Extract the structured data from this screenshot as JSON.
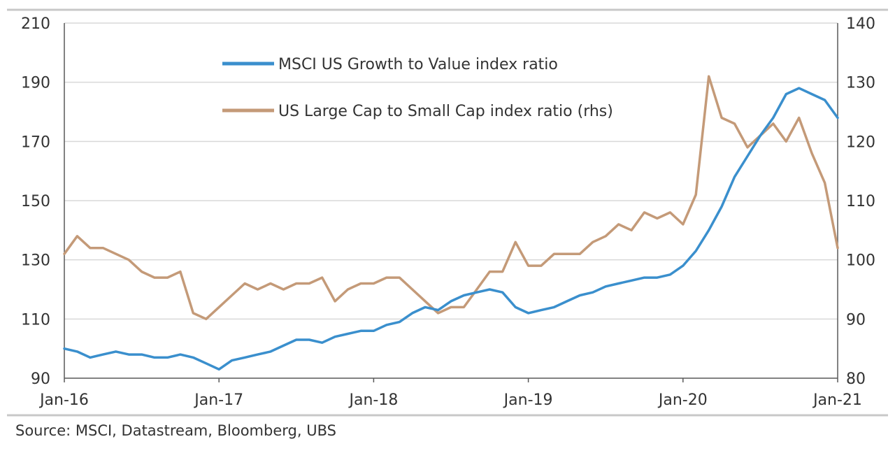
{
  "source_text": "Source:  MSCI, Datastream, Bloomberg, UBS",
  "colors": {
    "growth_value": "#3a8fcd",
    "large_small": "#c49a78",
    "grid": "#d9d9d9",
    "axis": "#595959",
    "frame": "#c8c8c8"
  },
  "chart_data": {
    "type": "line",
    "title": "",
    "xlabel": "",
    "ylabel": "",
    "x_tick_labels": [
      "Jan-16",
      "Jan-17",
      "Jan-18",
      "Jan-19",
      "Jan-20",
      "Jan-21"
    ],
    "x_range": [
      "2016-01",
      "2021-01"
    ],
    "y_left": {
      "range": [
        90,
        210
      ],
      "ticks": [
        90,
        110,
        130,
        150,
        170,
        190,
        210
      ]
    },
    "y_right": {
      "range": [
        80,
        140
      ],
      "ticks": [
        80,
        90,
        100,
        110,
        120,
        130,
        140
      ]
    },
    "grid": "horizontal",
    "legend_position": "top-left",
    "series": [
      {
        "name": "MSCI US Growth to Value index ratio",
        "axis": "left",
        "x": [
          "2016-01",
          "2016-02",
          "2016-03",
          "2016-04",
          "2016-05",
          "2016-06",
          "2016-07",
          "2016-08",
          "2016-09",
          "2016-10",
          "2016-11",
          "2016-12",
          "2017-01",
          "2017-02",
          "2017-03",
          "2017-04",
          "2017-05",
          "2017-06",
          "2017-07",
          "2017-08",
          "2017-09",
          "2017-10",
          "2017-11",
          "2017-12",
          "2018-01",
          "2018-02",
          "2018-03",
          "2018-04",
          "2018-05",
          "2018-06",
          "2018-07",
          "2018-08",
          "2018-09",
          "2018-10",
          "2018-11",
          "2018-12",
          "2019-01",
          "2019-02",
          "2019-03",
          "2019-04",
          "2019-05",
          "2019-06",
          "2019-07",
          "2019-08",
          "2019-09",
          "2019-10",
          "2019-11",
          "2019-12",
          "2020-01",
          "2020-02",
          "2020-03",
          "2020-04",
          "2020-05",
          "2020-06",
          "2020-07",
          "2020-08",
          "2020-09",
          "2020-10",
          "2020-11",
          "2020-12",
          "2021-01"
        ],
        "values": [
          100,
          99,
          97,
          98,
          99,
          98,
          98,
          97,
          97,
          98,
          97,
          95,
          93,
          96,
          97,
          98,
          99,
          101,
          103,
          103,
          102,
          104,
          105,
          106,
          106,
          108,
          109,
          112,
          114,
          113,
          116,
          118,
          119,
          120,
          119,
          114,
          112,
          113,
          114,
          116,
          118,
          119,
          121,
          122,
          123,
          124,
          124,
          125,
          128,
          133,
          140,
          148,
          158,
          165,
          172,
          178,
          186,
          188,
          186,
          184,
          178
        ]
      },
      {
        "name": "US Large Cap to Small Cap index ratio (rhs)",
        "axis": "right",
        "x": [
          "2016-01",
          "2016-02",
          "2016-03",
          "2016-04",
          "2016-05",
          "2016-06",
          "2016-07",
          "2016-08",
          "2016-09",
          "2016-10",
          "2016-11",
          "2016-12",
          "2017-01",
          "2017-02",
          "2017-03",
          "2017-04",
          "2017-05",
          "2017-06",
          "2017-07",
          "2017-08",
          "2017-09",
          "2017-10",
          "2017-11",
          "2017-12",
          "2018-01",
          "2018-02",
          "2018-03",
          "2018-04",
          "2018-05",
          "2018-06",
          "2018-07",
          "2018-08",
          "2018-09",
          "2018-10",
          "2018-11",
          "2018-12",
          "2019-01",
          "2019-02",
          "2019-03",
          "2019-04",
          "2019-05",
          "2019-06",
          "2019-07",
          "2019-08",
          "2019-09",
          "2019-10",
          "2019-11",
          "2019-12",
          "2020-01",
          "2020-02",
          "2020-03",
          "2020-04",
          "2020-05",
          "2020-06",
          "2020-07",
          "2020-08",
          "2020-09",
          "2020-10",
          "2020-11",
          "2020-12",
          "2021-01"
        ],
        "values": [
          101,
          104,
          102,
          102,
          101,
          100,
          98,
          97,
          97,
          98,
          91,
          90,
          92,
          94,
          96,
          95,
          96,
          95,
          96,
          96,
          97,
          93,
          95,
          96,
          96,
          97,
          97,
          95,
          93,
          91,
          92,
          92,
          95,
          98,
          98,
          103,
          99,
          99,
          101,
          101,
          101,
          103,
          104,
          106,
          105,
          108,
          107,
          108,
          106,
          111,
          131,
          124,
          123,
          119,
          121,
          123,
          120,
          124,
          118,
          113,
          102
        ]
      }
    ]
  }
}
